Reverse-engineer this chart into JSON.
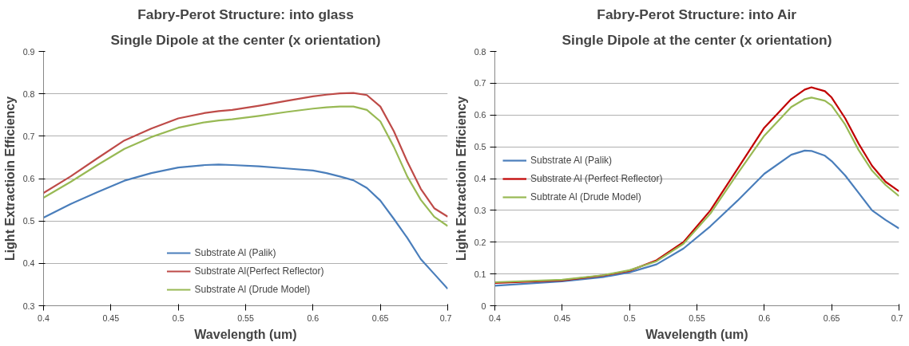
{
  "chart_data": [
    {
      "type": "line",
      "title": "Fabry-Perot Structure: into glass",
      "subtitle": "Single Dipole at the center (x orientation)",
      "xlabel": "Wavelength (um)",
      "ylabel": "Light Extractioin Efficiency",
      "x": [
        0.4,
        0.42,
        0.44,
        0.46,
        0.48,
        0.5,
        0.52,
        0.53,
        0.54,
        0.56,
        0.58,
        0.6,
        0.61,
        0.62,
        0.63,
        0.64,
        0.65,
        0.66,
        0.67,
        0.68,
        0.69,
        0.7
      ],
      "series": [
        {
          "name": "Substrate Al (Palik)",
          "color": "#4a7ebb",
          "values": [
            0.508,
            0.54,
            0.568,
            0.595,
            0.613,
            0.626,
            0.632,
            0.633,
            0.632,
            0.629,
            0.624,
            0.619,
            0.613,
            0.605,
            0.596,
            0.578,
            0.548,
            0.505,
            0.46,
            0.41,
            0.375,
            0.34
          ]
        },
        {
          "name": "Substrate Al(Perfect Reflector)",
          "color": "#be4b48",
          "values": [
            0.566,
            0.605,
            0.648,
            0.69,
            0.718,
            0.742,
            0.755,
            0.759,
            0.762,
            0.772,
            0.783,
            0.794,
            0.798,
            0.801,
            0.802,
            0.797,
            0.77,
            0.712,
            0.64,
            0.576,
            0.53,
            0.51
          ]
        },
        {
          "name": "Substrate Al (Drude Model)",
          "color": "#98b954",
          "values": [
            0.555,
            0.592,
            0.632,
            0.67,
            0.698,
            0.72,
            0.733,
            0.737,
            0.74,
            0.748,
            0.757,
            0.765,
            0.768,
            0.77,
            0.77,
            0.762,
            0.735,
            0.675,
            0.605,
            0.55,
            0.51,
            0.488
          ]
        }
      ],
      "xlim": [
        0.4,
        0.7
      ],
      "xticks": [
        0.4,
        0.45,
        0.5,
        0.55,
        0.6,
        0.65,
        0.7
      ],
      "ylim": [
        0.3,
        0.9
      ],
      "yticks": [
        0.3,
        0.4,
        0.5,
        0.6,
        0.7,
        0.8,
        0.9
      ],
      "grid": "y",
      "legend": "bottom",
      "marker": "none",
      "line_style": "solid"
    },
    {
      "type": "line",
      "title": "Fabry-Perot Structure: into Air",
      "subtitle": "Single Dipole at the center (x orientation)",
      "xlabel": "Wavelength (um)",
      "ylabel": "Light Extractioin Efficiency",
      "x": [
        0.4,
        0.45,
        0.48,
        0.5,
        0.52,
        0.54,
        0.56,
        0.58,
        0.6,
        0.62,
        0.63,
        0.635,
        0.645,
        0.65,
        0.66,
        0.67,
        0.68,
        0.69,
        0.7
      ],
      "series": [
        {
          "name": "Substrate Al (Palik)",
          "color": "#4a7ebb",
          "values": [
            0.063,
            0.077,
            0.09,
            0.105,
            0.13,
            0.18,
            0.25,
            0.33,
            0.415,
            0.475,
            0.488,
            0.487,
            0.472,
            0.455,
            0.41,
            0.355,
            0.3,
            0.27,
            0.243
          ]
        },
        {
          "name": "Substrate Al (Perfect Reflector)",
          "color": "#c00000",
          "values": [
            0.072,
            0.08,
            0.095,
            0.11,
            0.143,
            0.2,
            0.3,
            0.43,
            0.56,
            0.65,
            0.68,
            0.687,
            0.675,
            0.655,
            0.59,
            0.51,
            0.44,
            0.39,
            0.36
          ]
        },
        {
          "name": "Subtrate Al (Drude Model)",
          "color": "#98b954",
          "values": [
            0.074,
            0.082,
            0.096,
            0.112,
            0.14,
            0.195,
            0.29,
            0.415,
            0.535,
            0.625,
            0.65,
            0.655,
            0.645,
            0.63,
            0.57,
            0.49,
            0.425,
            0.38,
            0.345
          ]
        }
      ],
      "xlim": [
        0.4,
        0.7
      ],
      "xticks": [
        0.4,
        0.45,
        0.5,
        0.55,
        0.6,
        0.65,
        0.7
      ],
      "ylim": [
        0,
        0.8
      ],
      "yticks": [
        0,
        0.1,
        0.2,
        0.3,
        0.4,
        0.5,
        0.6,
        0.7,
        0.8
      ],
      "grid": "y",
      "legend": "left",
      "marker": "none",
      "line_style": "solid"
    }
  ]
}
